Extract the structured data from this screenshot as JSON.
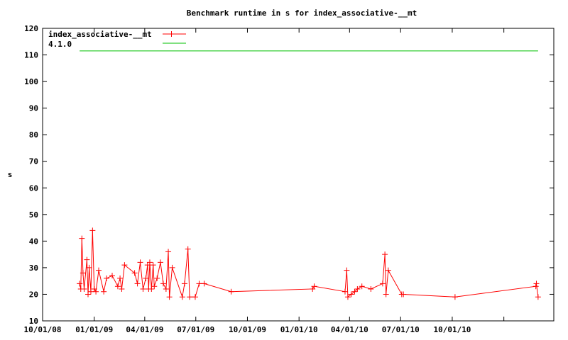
{
  "chart_data": {
    "type": "line",
    "title": "Benchmark runtime in s for index_associative-__mt",
    "xlabel": "",
    "ylabel": "s",
    "ylim": [
      10,
      120
    ],
    "xlim": [
      "2008-10-01",
      "2011-03-31"
    ],
    "yticks": [
      "10",
      "20",
      "30",
      "40",
      "50",
      "60",
      "70",
      "80",
      "90",
      "100",
      "110",
      "120"
    ],
    "xticks": [
      {
        "date": "2008-10-01",
        "label": "10/01/08"
      },
      {
        "date": "2009-01-01",
        "label": "01/01/09"
      },
      {
        "date": "2009-04-01",
        "label": "04/01/09"
      },
      {
        "date": "2009-07-01",
        "label": "07/01/09"
      },
      {
        "date": "2009-10-01",
        "label": "10/01/09"
      },
      {
        "date": "2010-01-01",
        "label": "01/01/10"
      },
      {
        "date": "2010-04-01",
        "label": "04/01/10"
      },
      {
        "date": "2010-07-01",
        "label": "07/01/10"
      },
      {
        "date": "2010-10-01",
        "label": "10/01/10"
      },
      {
        "date": "2011-01-01",
        "label": ""
      }
    ],
    "grid": false,
    "legend_position": "top-left",
    "series": [
      {
        "name": "index_associative-__mt",
        "color": "#ff0000",
        "marker": "plus",
        "points": [
          [
            "2008-12-06",
            24
          ],
          [
            "2008-12-08",
            22
          ],
          [
            "2008-12-10",
            41
          ],
          [
            "2008-12-12",
            28
          ],
          [
            "2008-12-14",
            22
          ],
          [
            "2008-12-19",
            33
          ],
          [
            "2008-12-21",
            20
          ],
          [
            "2008-12-23",
            30
          ],
          [
            "2008-12-26",
            21
          ],
          [
            "2008-12-29",
            44
          ],
          [
            "2009-01-01",
            22
          ],
          [
            "2009-01-04",
            21
          ],
          [
            "2009-01-09",
            29
          ],
          [
            "2009-01-18",
            21
          ],
          [
            "2009-01-23",
            26
          ],
          [
            "2009-02-02",
            27
          ],
          [
            "2009-02-12",
            23
          ],
          [
            "2009-02-16",
            26
          ],
          [
            "2009-02-19",
            22
          ],
          [
            "2009-02-24",
            31
          ],
          [
            "2009-03-14",
            28
          ],
          [
            "2009-03-19",
            24
          ],
          [
            "2009-03-24",
            32
          ],
          [
            "2009-03-29",
            22
          ],
          [
            "2009-04-03",
            26
          ],
          [
            "2009-04-06",
            31
          ],
          [
            "2009-04-08",
            22
          ],
          [
            "2009-04-10",
            32
          ],
          [
            "2009-04-13",
            22
          ],
          [
            "2009-04-16",
            31
          ],
          [
            "2009-04-18",
            23
          ],
          [
            "2009-04-23",
            26
          ],
          [
            "2009-04-29",
            32
          ],
          [
            "2009-05-04",
            24
          ],
          [
            "2009-05-09",
            22
          ],
          [
            "2009-05-13",
            36
          ],
          [
            "2009-05-15",
            19
          ],
          [
            "2009-05-20",
            30
          ],
          [
            "2009-06-07",
            19
          ],
          [
            "2009-06-11",
            24
          ],
          [
            "2009-06-17",
            37
          ],
          [
            "2009-06-20",
            19
          ],
          [
            "2009-06-30",
            19
          ],
          [
            "2009-07-07",
            24
          ],
          [
            "2009-07-16",
            24
          ],
          [
            "2009-09-02",
            21
          ],
          [
            "2010-01-25",
            22
          ],
          [
            "2010-01-28",
            23
          ],
          [
            "2010-03-24",
            21
          ],
          [
            "2010-03-27",
            29
          ],
          [
            "2010-03-29",
            19
          ],
          [
            "2010-04-04",
            20
          ],
          [
            "2010-04-10",
            21
          ],
          [
            "2010-04-15",
            22
          ],
          [
            "2010-04-23",
            23
          ],
          [
            "2010-05-09",
            22
          ],
          [
            "2010-05-30",
            24
          ],
          [
            "2010-06-03",
            35
          ],
          [
            "2010-06-05",
            20
          ],
          [
            "2010-06-09",
            29
          ],
          [
            "2010-07-03",
            20
          ],
          [
            "2010-07-06",
            20
          ],
          [
            "2010-10-06",
            19
          ],
          [
            "2011-02-27",
            23
          ],
          [
            "2011-02-28",
            24
          ],
          [
            "2011-03-03",
            19
          ]
        ]
      },
      {
        "name": "4.1.0",
        "color": "#00c000",
        "marker": "none",
        "points": [
          [
            "2008-12-06",
            111.5
          ],
          [
            "2011-03-03",
            111.5
          ]
        ]
      }
    ]
  }
}
